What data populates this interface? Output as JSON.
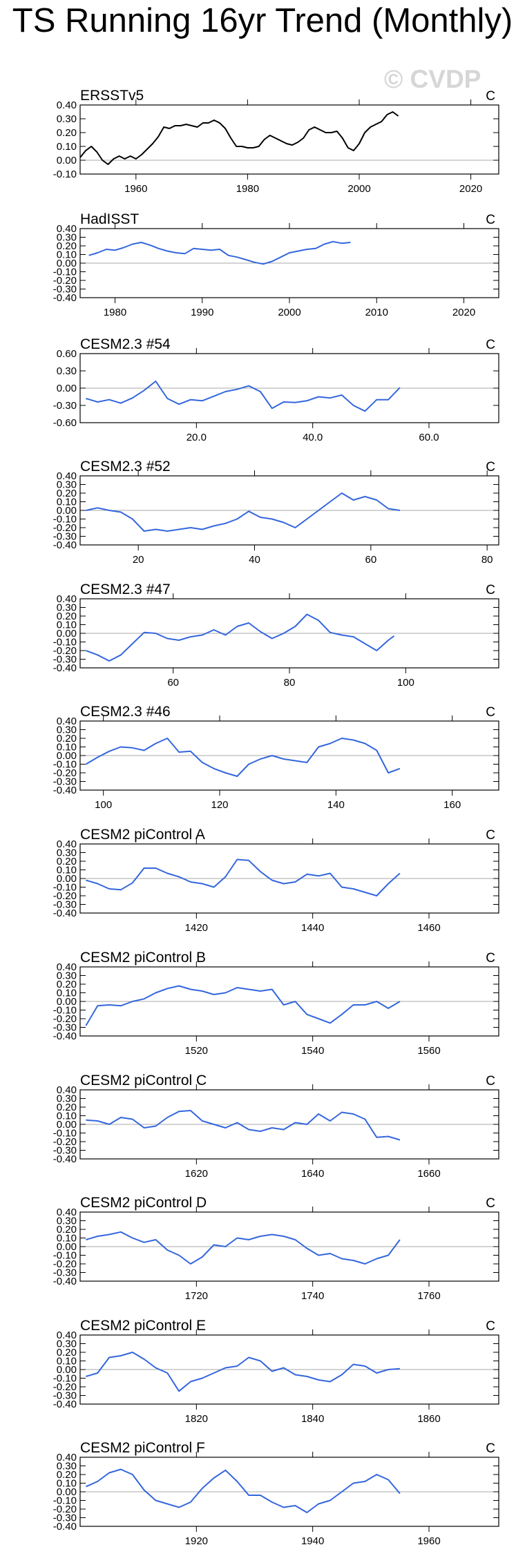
{
  "page_title": "TS Running 16yr Trend (Monthly)",
  "watermark": "© CVDP",
  "colors": {
    "obs_line": "#000000",
    "model_line": "#3366dd",
    "zero_line": "#a8a8a8",
    "axis": "#000000"
  },
  "chart_data": [
    {
      "type": "line",
      "title": "ERSSTv5",
      "units": "C",
      "line_color": "#000000",
      "xlim": [
        1950,
        2025
      ],
      "xticks": [
        1960,
        1980,
        2000,
        2020
      ],
      "xtick_labels": [
        "1960",
        "1980",
        "2000",
        "2020"
      ],
      "ylim": [
        -0.1,
        0.4
      ],
      "yticks": [
        -0.1,
        0,
        0.1,
        0.2,
        0.3,
        0.4
      ],
      "ytick_labels": [
        "-0.10",
        "0.00",
        "0.10",
        "0.20",
        "0.30",
        "0.40"
      ],
      "x": [
        1950,
        1951,
        1952,
        1953,
        1954,
        1955,
        1956,
        1957,
        1958,
        1959,
        1960,
        1961,
        1962,
        1963,
        1964,
        1965,
        1966,
        1967,
        1968,
        1969,
        1970,
        1971,
        1972,
        1973,
        1974,
        1975,
        1976,
        1977,
        1978,
        1979,
        1980,
        1981,
        1982,
        1983,
        1984,
        1985,
        1986,
        1987,
        1988,
        1989,
        1990,
        1991,
        1992,
        1993,
        1994,
        1995,
        1996,
        1997,
        1998,
        1999,
        2000,
        2001,
        2002,
        2003,
        2004,
        2005,
        2006,
        2007
      ],
      "y": [
        0.02,
        0.07,
        0.1,
        0.06,
        0,
        -0.03,
        0.01,
        0.03,
        0.01,
        0.03,
        0.01,
        0.04,
        0.08,
        0.12,
        0.17,
        0.24,
        0.23,
        0.25,
        0.25,
        0.26,
        0.25,
        0.24,
        0.27,
        0.27,
        0.29,
        0.27,
        0.23,
        0.16,
        0.1,
        0.1,
        0.09,
        0.09,
        0.1,
        0.15,
        0.18,
        0.16,
        0.14,
        0.12,
        0.11,
        0.13,
        0.16,
        0.22,
        0.24,
        0.22,
        0.2,
        0.2,
        0.21,
        0.16,
        0.09,
        0.07,
        0.12,
        0.2,
        0.24,
        0.26,
        0.28,
        0.33,
        0.35,
        0.32
      ]
    },
    {
      "type": "line",
      "title": "HadISST",
      "units": "C",
      "line_color": "#3366dd",
      "xlim": [
        1976,
        2024
      ],
      "xticks": [
        1980,
        1990,
        2000,
        2010,
        2020
      ],
      "xtick_labels": [
        "1980",
        "1990",
        "2000",
        "2010",
        "2020"
      ],
      "ylim": [
        -0.4,
        0.4
      ],
      "yticks": [
        -0.4,
        -0.3,
        -0.2,
        -0.1,
        0,
        0.1,
        0.2,
        0.3,
        0.4
      ],
      "ytick_labels": [
        "-0.40",
        "-0.30",
        "-0.20",
        "-0.10",
        "0.00",
        "0.10",
        "0.20",
        "0.30",
        "0.40"
      ],
      "x": [
        1977,
        1978,
        1979,
        1980,
        1981,
        1982,
        1983,
        1984,
        1985,
        1986,
        1987,
        1988,
        1989,
        1990,
        1991,
        1992,
        1993,
        1994,
        1995,
        1996,
        1997,
        1998,
        1999,
        2000,
        2001,
        2002,
        2003,
        2004,
        2005,
        2006,
        2007
      ],
      "y": [
        0.09,
        0.12,
        0.16,
        0.15,
        0.18,
        0.22,
        0.24,
        0.21,
        0.17,
        0.14,
        0.12,
        0.11,
        0.17,
        0.16,
        0.15,
        0.16,
        0.09,
        0.07,
        0.04,
        0.01,
        -0.01,
        0.02,
        0.07,
        0.12,
        0.14,
        0.16,
        0.17,
        0.22,
        0.25,
        0.23,
        0.24
      ]
    },
    {
      "type": "line",
      "title": "CESM2.3 #54",
      "units": "C",
      "line_color": "#3366dd",
      "xlim": [
        0,
        72
      ],
      "xticks": [
        20,
        40,
        60
      ],
      "xtick_labels": [
        "20.0",
        "40.0",
        "60.0"
      ],
      "ylim": [
        -0.6,
        0.6
      ],
      "yticks": [
        -0.6,
        -0.3,
        0,
        0.3,
        0.6
      ],
      "ytick_labels": [
        "-0.60",
        "-0.30",
        "0.00",
        "0.30",
        "0.60"
      ],
      "x": [
        1,
        3,
        5,
        7,
        9,
        11,
        13,
        15,
        17,
        19,
        21,
        23,
        25,
        27,
        29,
        31,
        33,
        35,
        37,
        39,
        41,
        43,
        45,
        47,
        49,
        51,
        53,
        55
      ],
      "y": [
        -0.18,
        -0.24,
        -0.2,
        -0.26,
        -0.17,
        -0.04,
        0.12,
        -0.18,
        -0.28,
        -0.2,
        -0.22,
        -0.14,
        -0.06,
        -0.02,
        0.04,
        -0.06,
        -0.35,
        -0.24,
        -0.25,
        -0.22,
        -0.15,
        -0.17,
        -0.12,
        -0.3,
        -0.4,
        -0.2,
        -0.2,
        0.01
      ]
    },
    {
      "type": "line",
      "title": "CESM2.3 #52",
      "units": "C",
      "line_color": "#3366dd",
      "xlim": [
        10,
        82
      ],
      "xticks": [
        20,
        40,
        60,
        80
      ],
      "xtick_labels": [
        "20",
        "40",
        "60",
        "80"
      ],
      "ylim": [
        -0.4,
        0.4
      ],
      "yticks": [
        -0.4,
        -0.3,
        -0.2,
        -0.1,
        0,
        0.1,
        0.2,
        0.3,
        0.4
      ],
      "ytick_labels": [
        "-0.40",
        "-0.30",
        "-0.20",
        "-0.10",
        "0.00",
        "0.10",
        "0.20",
        "0.30",
        "0.40"
      ],
      "x": [
        11,
        13,
        15,
        17,
        19,
        21,
        23,
        25,
        27,
        29,
        31,
        33,
        35,
        37,
        39,
        41,
        43,
        45,
        47,
        49,
        51,
        53,
        55,
        57,
        59,
        61,
        63,
        65
      ],
      "y": [
        0,
        0.03,
        0,
        -0.02,
        -0.1,
        -0.24,
        -0.22,
        -0.24,
        -0.22,
        -0.2,
        -0.22,
        -0.18,
        -0.15,
        -0.1,
        -0.01,
        -0.08,
        -0.1,
        -0.14,
        -0.2,
        -0.1,
        0,
        0.1,
        0.2,
        0.12,
        0.16,
        0.12,
        0.02,
        0
      ]
    },
    {
      "type": "line",
      "title": "CESM2.3 #47",
      "units": "C",
      "line_color": "#3366dd",
      "xlim": [
        44,
        116
      ],
      "xticks": [
        60,
        80,
        100
      ],
      "xtick_labels": [
        "60",
        "80",
        "100"
      ],
      "ylim": [
        -0.4,
        0.4
      ],
      "yticks": [
        -0.4,
        -0.3,
        -0.2,
        -0.1,
        0,
        0.1,
        0.2,
        0.3,
        0.4
      ],
      "ytick_labels": [
        "-0.40",
        "-0.30",
        "-0.20",
        "-0.10",
        "0.00",
        "0.10",
        "0.20",
        "0.30",
        "0.40"
      ],
      "x": [
        45,
        47,
        49,
        51,
        53,
        55,
        57,
        59,
        61,
        63,
        65,
        67,
        69,
        71,
        73,
        75,
        77,
        79,
        81,
        83,
        85,
        87,
        89,
        91,
        93,
        95,
        97,
        98
      ],
      "y": [
        -0.2,
        -0.25,
        -0.32,
        -0.25,
        -0.12,
        0.01,
        0,
        -0.06,
        -0.08,
        -0.04,
        -0.02,
        0.04,
        -0.02,
        0.08,
        0.12,
        0.02,
        -0.06,
        0,
        0.08,
        0.22,
        0.15,
        0.01,
        -0.02,
        -0.04,
        -0.12,
        -0.2,
        -0.08,
        -0.03
      ]
    },
    {
      "type": "line",
      "title": "CESM2.3 #46",
      "units": "C",
      "line_color": "#3366dd",
      "xlim": [
        96,
        168
      ],
      "xticks": [
        100,
        120,
        140,
        160
      ],
      "xtick_labels": [
        "100",
        "120",
        "140",
        "160"
      ],
      "ylim": [
        -0.4,
        0.4
      ],
      "yticks": [
        -0.4,
        -0.3,
        -0.2,
        -0.1,
        0,
        0.1,
        0.2,
        0.3,
        0.4
      ],
      "ytick_labels": [
        "-0.40",
        "-0.30",
        "-0.20",
        "-0.10",
        "0.00",
        "0.10",
        "0.20",
        "0.30",
        "0.40"
      ],
      "x": [
        97,
        99,
        101,
        103,
        105,
        107,
        109,
        111,
        113,
        115,
        117,
        119,
        121,
        123,
        125,
        127,
        129,
        131,
        133,
        135,
        137,
        139,
        141,
        143,
        145,
        147,
        149,
        151
      ],
      "y": [
        -0.1,
        -0.02,
        0.05,
        0.1,
        0.09,
        0.06,
        0.14,
        0.2,
        0.04,
        0.05,
        -0.08,
        -0.15,
        -0.2,
        -0.24,
        -0.1,
        -0.04,
        0,
        -0.04,
        -0.06,
        -0.08,
        0.1,
        0.14,
        0.2,
        0.18,
        0.14,
        0.06,
        -0.2,
        -0.15
      ]
    },
    {
      "type": "line",
      "title": "CESM2 piControl A",
      "units": "C",
      "line_color": "#3366dd",
      "xlim": [
        1400,
        1472
      ],
      "xticks": [
        1420,
        1440,
        1460
      ],
      "xtick_labels": [
        "1420",
        "1440",
        "1460"
      ],
      "ylim": [
        -0.4,
        0.4
      ],
      "yticks": [
        -0.4,
        -0.3,
        -0.2,
        -0.1,
        0,
        0.1,
        0.2,
        0.3,
        0.4
      ],
      "ytick_labels": [
        "-0.40",
        "-0.30",
        "-0.20",
        "-0.10",
        "0.00",
        "0.10",
        "0.20",
        "0.30",
        "0.40"
      ],
      "x": [
        1401,
        1403,
        1405,
        1407,
        1409,
        1411,
        1413,
        1415,
        1417,
        1419,
        1421,
        1423,
        1425,
        1427,
        1429,
        1431,
        1433,
        1435,
        1437,
        1439,
        1441,
        1443,
        1445,
        1447,
        1449,
        1451,
        1453,
        1455
      ],
      "y": [
        -0.02,
        -0.06,
        -0.12,
        -0.13,
        -0.05,
        0.12,
        0.12,
        0.06,
        0.02,
        -0.04,
        -0.06,
        -0.1,
        0.02,
        0.22,
        0.21,
        0.08,
        -0.02,
        -0.06,
        -0.04,
        0.05,
        0.03,
        0.06,
        -0.1,
        -0.12,
        -0.16,
        -0.2,
        -0.06,
        0.06
      ]
    },
    {
      "type": "line",
      "title": "CESM2 piControl B",
      "units": "C",
      "line_color": "#3366dd",
      "xlim": [
        1500,
        1572
      ],
      "xticks": [
        1520,
        1540,
        1560
      ],
      "xtick_labels": [
        "1520",
        "1540",
        "1560"
      ],
      "ylim": [
        -0.4,
        0.4
      ],
      "yticks": [
        -0.4,
        -0.3,
        -0.2,
        -0.1,
        0,
        0.1,
        0.2,
        0.3,
        0.4
      ],
      "ytick_labels": [
        "-0.40",
        "-0.30",
        "-0.20",
        "-0.10",
        "0.00",
        "0.10",
        "0.20",
        "0.30",
        "0.40"
      ],
      "x": [
        1501,
        1503,
        1505,
        1507,
        1509,
        1511,
        1513,
        1515,
        1517,
        1519,
        1521,
        1523,
        1525,
        1527,
        1529,
        1531,
        1533,
        1535,
        1537,
        1539,
        1541,
        1543,
        1545,
        1547,
        1549,
        1551,
        1553,
        1555
      ],
      "y": [
        -0.28,
        -0.05,
        -0.04,
        -0.05,
        0,
        0.03,
        0.1,
        0.15,
        0.18,
        0.14,
        0.12,
        0.08,
        0.1,
        0.16,
        0.14,
        0.12,
        0.14,
        -0.04,
        0,
        -0.15,
        -0.2,
        -0.25,
        -0.15,
        -0.04,
        -0.04,
        0,
        -0.08,
        0
      ]
    },
    {
      "type": "line",
      "title": "CESM2 piControl C",
      "units": "C",
      "line_color": "#3366dd",
      "xlim": [
        1600,
        1672
      ],
      "xticks": [
        1620,
        1640,
        1660
      ],
      "xtick_labels": [
        "1620",
        "1640",
        "1660"
      ],
      "ylim": [
        -0.4,
        0.4
      ],
      "yticks": [
        -0.4,
        -0.3,
        -0.2,
        -0.1,
        0,
        0.1,
        0.2,
        0.3,
        0.4
      ],
      "ytick_labels": [
        "-0.40",
        "-0.30",
        "-0.20",
        "-0.10",
        "0.00",
        "0.10",
        "0.20",
        "0.30",
        "0.40"
      ],
      "x": [
        1601,
        1603,
        1605,
        1607,
        1609,
        1611,
        1613,
        1615,
        1617,
        1619,
        1621,
        1623,
        1625,
        1627,
        1629,
        1631,
        1633,
        1635,
        1637,
        1639,
        1641,
        1643,
        1645,
        1647,
        1649,
        1651,
        1653,
        1655
      ],
      "y": [
        0.05,
        0.04,
        0,
        0.08,
        0.06,
        -0.04,
        -0.02,
        0.08,
        0.15,
        0.16,
        0.04,
        0,
        -0.04,
        0.02,
        -0.06,
        -0.08,
        -0.04,
        -0.06,
        0.02,
        0,
        0.12,
        0.04,
        0.14,
        0.12,
        0.06,
        -0.15,
        -0.14,
        -0.18
      ]
    },
    {
      "type": "line",
      "title": "CESM2 piControl D",
      "units": "C",
      "line_color": "#3366dd",
      "xlim": [
        1700,
        1772
      ],
      "xticks": [
        1720,
        1740,
        1760
      ],
      "xtick_labels": [
        "1720",
        "1740",
        "1760"
      ],
      "ylim": [
        -0.4,
        0.4
      ],
      "yticks": [
        -0.4,
        -0.3,
        -0.2,
        -0.1,
        0,
        0.1,
        0.2,
        0.3,
        0.4
      ],
      "ytick_labels": [
        "-0.40",
        "-0.30",
        "-0.20",
        "-0.10",
        "0.00",
        "0.10",
        "0.20",
        "0.30",
        "0.40"
      ],
      "x": [
        1701,
        1703,
        1705,
        1707,
        1709,
        1711,
        1713,
        1715,
        1717,
        1719,
        1721,
        1723,
        1725,
        1727,
        1729,
        1731,
        1733,
        1735,
        1737,
        1739,
        1741,
        1743,
        1745,
        1747,
        1749,
        1751,
        1753,
        1755
      ],
      "y": [
        0.08,
        0.12,
        0.14,
        0.17,
        0.1,
        0.05,
        0.08,
        -0.04,
        -0.1,
        -0.2,
        -0.12,
        0.02,
        0,
        0.1,
        0.08,
        0.12,
        0.14,
        0.12,
        0.08,
        -0.02,
        -0.1,
        -0.08,
        -0.14,
        -0.16,
        -0.2,
        -0.14,
        -0.1,
        0.08
      ]
    },
    {
      "type": "line",
      "title": "CESM2 piControl E",
      "units": "C",
      "line_color": "#3366dd",
      "xlim": [
        1800,
        1872
      ],
      "xticks": [
        1820,
        1840,
        1860
      ],
      "xtick_labels": [
        "1820",
        "1840",
        "1860"
      ],
      "ylim": [
        -0.4,
        0.4
      ],
      "yticks": [
        -0.4,
        -0.3,
        -0.2,
        -0.1,
        0,
        0.1,
        0.2,
        0.3,
        0.4
      ],
      "ytick_labels": [
        "-0.40",
        "-0.30",
        "-0.20",
        "-0.10",
        "0.00",
        "0.10",
        "0.20",
        "0.30",
        "0.40"
      ],
      "x": [
        1801,
        1803,
        1805,
        1807,
        1809,
        1811,
        1813,
        1815,
        1817,
        1819,
        1821,
        1823,
        1825,
        1827,
        1829,
        1831,
        1833,
        1835,
        1837,
        1839,
        1841,
        1843,
        1845,
        1847,
        1849,
        1851,
        1853,
        1855
      ],
      "y": [
        -0.08,
        -0.04,
        0.14,
        0.16,
        0.2,
        0.12,
        0.02,
        -0.04,
        -0.25,
        -0.14,
        -0.1,
        -0.04,
        0.02,
        0.04,
        0.14,
        0.1,
        -0.02,
        0.02,
        -0.06,
        -0.08,
        -0.12,
        -0.14,
        -0.06,
        0.06,
        0.04,
        -0.04,
        0,
        0.01
      ]
    },
    {
      "type": "line",
      "title": "CESM2 piControl F",
      "units": "C",
      "line_color": "#3366dd",
      "xlim": [
        1900,
        1972
      ],
      "xticks": [
        1920,
        1940,
        1960
      ],
      "xtick_labels": [
        "1920",
        "1940",
        "1960"
      ],
      "ylim": [
        -0.4,
        0.4
      ],
      "yticks": [
        -0.4,
        -0.3,
        -0.2,
        -0.1,
        0,
        0.1,
        0.2,
        0.3,
        0.4
      ],
      "ytick_labels": [
        "-0.40",
        "-0.30",
        "-0.20",
        "-0.10",
        "0.00",
        "0.10",
        "0.20",
        "0.30",
        "0.40"
      ],
      "x": [
        1901,
        1903,
        1905,
        1907,
        1909,
        1911,
        1913,
        1915,
        1917,
        1919,
        1921,
        1923,
        1925,
        1927,
        1929,
        1931,
        1933,
        1935,
        1937,
        1939,
        1941,
        1943,
        1945,
        1947,
        1949,
        1951,
        1953,
        1955
      ],
      "y": [
        0.06,
        0.12,
        0.22,
        0.26,
        0.2,
        0.02,
        -0.1,
        -0.14,
        -0.18,
        -0.12,
        0.04,
        0.16,
        0.25,
        0.12,
        -0.04,
        -0.04,
        -0.12,
        -0.18,
        -0.16,
        -0.24,
        -0.14,
        -0.1,
        0,
        0.1,
        0.12,
        0.2,
        0.14,
        -0.02
      ]
    }
  ]
}
